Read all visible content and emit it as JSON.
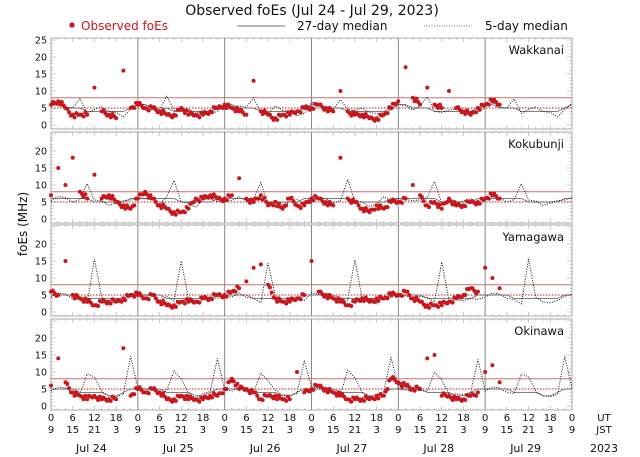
{
  "chart_data": {
    "type": "scatter",
    "title": "Observed foEs (Jul 24 - Jul 29, 2023)",
    "ylabel": "foEs (MHz)",
    "legend": {
      "observed": "Observed foEs",
      "median27": "27-day median",
      "median5": "5-day median",
      "placement": "top"
    },
    "colors": {
      "observed": "#c8161d",
      "threshold": "#c87070",
      "median": "#111111",
      "grid": "#999999"
    },
    "ylim": [
      0,
      25
    ],
    "yticks": [
      0,
      5,
      10,
      15,
      20,
      25
    ],
    "xlim_hours": [
      0,
      144
    ],
    "sample_step_hours": 2,
    "thresholds": {
      "solid": 8,
      "dotted": 5
    },
    "x_ticks_ut": [
      "0",
      "6",
      "12",
      "18",
      "0",
      "6",
      "12",
      "18",
      "0",
      "6",
      "12",
      "18",
      "0",
      "6",
      "12",
      "18",
      "0",
      "6",
      "12",
      "18",
      "0",
      "6",
      "12",
      "18",
      "0"
    ],
    "x_ticks_jst": [
      "9",
      "15",
      "21",
      "3",
      "9",
      "15",
      "21",
      "3",
      "9",
      "15",
      "21",
      "3",
      "9",
      "15",
      "21",
      "3",
      "9",
      "15",
      "21",
      "3",
      "9",
      "15",
      "21",
      "3",
      "9"
    ],
    "ut_label": "UT",
    "jst_label": "JST",
    "days": [
      "Jul 24",
      "Jul 25",
      "Jul 26",
      "Jul 27",
      "Jul 28",
      "Jul 29"
    ],
    "year": "2023",
    "stations": [
      {
        "name": "Wakkanai",
        "observed": [
          6,
          7,
          5,
          3,
          3,
          3,
          11,
          4,
          3,
          2,
          16,
          5,
          6,
          5,
          5,
          4,
          3,
          3,
          5,
          3,
          3,
          3,
          4,
          5,
          6,
          5,
          4,
          3,
          13,
          4,
          3,
          2,
          3,
          3,
          4,
          5,
          5,
          6,
          5,
          4,
          10,
          4,
          3,
          3,
          2,
          2,
          3,
          5,
          7,
          17,
          8,
          6,
          11,
          6,
          5,
          10,
          5,
          4,
          3,
          5,
          6,
          7,
          6
        ],
        "median5_daily": [
          6,
          6,
          5,
          5,
          8,
          4,
          4,
          5,
          4,
          4,
          3,
          4
        ],
        "median27_daily": [
          6,
          6,
          5,
          5,
          5,
          4,
          4,
          4,
          4,
          4,
          4,
          5
        ]
      },
      {
        "name": "Kokubunji",
        "observed": [
          7,
          15,
          10,
          18,
          8,
          6,
          13,
          6,
          7,
          5,
          4,
          3,
          6,
          8,
          6,
          4,
          3,
          2,
          2,
          3,
          6,
          6,
          7,
          6,
          6,
          7,
          12,
          6,
          5,
          7,
          4,
          5,
          3,
          6,
          4,
          4,
          6,
          6,
          5,
          4,
          18,
          6,
          5,
          3,
          2,
          4,
          3,
          5,
          5,
          6,
          10,
          7,
          4,
          5,
          3,
          6,
          4,
          4,
          5,
          5,
          6,
          7,
          6
        ],
        "median5_daily": [
          6,
          6,
          6,
          5,
          6,
          11,
          5,
          5,
          4,
          5,
          6,
          5
        ],
        "median27_daily": [
          6,
          6,
          6,
          6,
          6,
          6,
          5,
          5,
          5,
          5,
          5,
          6
        ]
      },
      {
        "name": "Yamagawa",
        "observed": [
          6,
          5,
          15,
          5,
          4,
          3,
          2,
          3,
          3,
          3,
          4,
          5,
          5,
          4,
          5,
          3,
          2,
          2,
          3,
          3,
          3,
          4,
          4,
          5,
          5,
          6,
          7,
          9,
          13,
          14,
          8,
          4,
          3,
          3,
          4,
          5,
          15,
          6,
          5,
          4,
          3,
          2,
          3,
          4,
          3,
          4,
          4,
          5,
          5,
          6,
          4,
          3,
          2,
          2,
          2,
          3,
          4,
          5,
          7,
          6,
          13,
          10,
          7
        ],
        "median5_daily": [
          5,
          5,
          5,
          4,
          4,
          3,
          15,
          4,
          3,
          3,
          4,
          4
        ],
        "median27_daily": [
          5,
          5,
          5,
          5,
          4,
          4,
          4,
          4,
          4,
          4,
          4,
          5
        ]
      },
      {
        "name": "Okinawa",
        "observed": [
          6,
          14,
          7,
          4,
          3,
          2,
          3,
          2,
          2,
          2,
          17,
          3,
          5,
          4,
          5,
          4,
          2,
          2,
          3,
          2,
          2,
          2,
          3,
          3,
          5,
          8,
          5,
          5,
          4,
          2,
          3,
          3,
          2,
          2,
          10,
          4,
          5,
          6,
          5,
          4,
          3,
          2,
          2,
          2,
          2,
          3,
          3,
          8,
          7,
          6,
          5,
          5,
          14,
          15,
          3,
          3,
          2,
          2,
          3,
          4,
          10,
          12,
          7
        ],
        "median5_daily": [
          5,
          5,
          5,
          4,
          4,
          10,
          8,
          4,
          3,
          3,
          4,
          14
        ],
        "median27_daily": [
          5,
          5,
          5,
          5,
          4,
          4,
          4,
          4,
          3,
          3,
          4,
          5
        ]
      }
    ]
  }
}
